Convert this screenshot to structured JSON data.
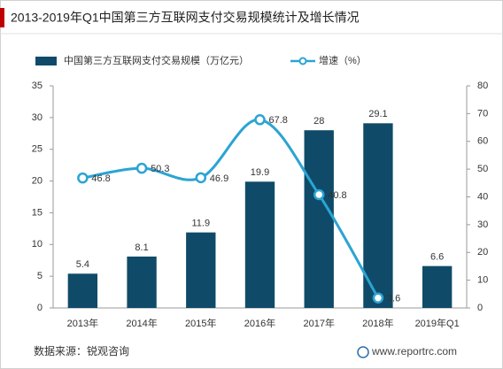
{
  "chart_data": {
    "type": "bar",
    "title": "2013-2019年Q1中国第三方互联网支付交易规模统计及增长情况",
    "categories": [
      "2013年",
      "2014年",
      "2015年",
      "2016年",
      "2017年",
      "2018年",
      "2019年Q1"
    ],
    "series": [
      {
        "name": "中国第三方互联网支付交易规模（万亿元）",
        "type": "bar",
        "color": "#0f4b68",
        "values": [
          5.4,
          8.1,
          11.9,
          19.9,
          28,
          29.1,
          6.6
        ]
      },
      {
        "name": "增速（%）",
        "type": "line",
        "axis": "y2",
        "color": "#2ba4d3",
        "values": [
          46.8,
          50.3,
          46.9,
          67.8,
          40.8,
          3.6,
          null
        ]
      }
    ],
    "ylim": [
      0,
      35
    ],
    "yticks": [
      0,
      5,
      10,
      15,
      20,
      25,
      30,
      35
    ],
    "y2lim": [
      0,
      80
    ],
    "y2ticks": [
      0,
      10,
      20,
      30,
      40,
      50,
      60,
      70,
      80
    ],
    "grid": false,
    "legend": "top",
    "source": "数据来源：锐观咨询",
    "watermark": "www.reportrc.com"
  }
}
